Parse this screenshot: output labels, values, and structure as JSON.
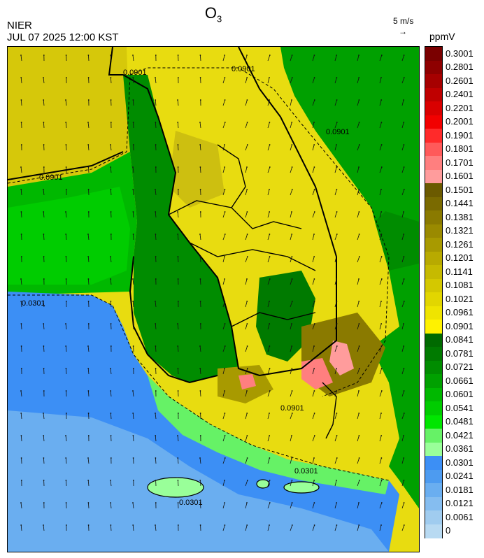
{
  "header": {
    "title_main": "O",
    "title_sub": "3",
    "agency": "NIER",
    "timestamp": "JUL 07 2025 12:00 KST",
    "wind_reference": "5 m/s",
    "unit": "ppmV"
  },
  "legend": [
    {
      "label": "0.3001",
      "color": "#7a0000"
    },
    {
      "label": "0.2801",
      "color": "#8e0000"
    },
    {
      "label": "0.2601",
      "color": "#a60000"
    },
    {
      "label": "0.2401",
      "color": "#bf0000"
    },
    {
      "label": "0.2201",
      "color": "#d90000"
    },
    {
      "label": "0.2001",
      "color": "#f20000"
    },
    {
      "label": "0.1901",
      "color": "#ff2a2a"
    },
    {
      "label": "0.1801",
      "color": "#ff5a5a"
    },
    {
      "label": "0.1701",
      "color": "#ff7f7f"
    },
    {
      "label": "0.1601",
      "color": "#ff9c9c"
    },
    {
      "label": "0.1501",
      "color": "#6b5a00"
    },
    {
      "label": "0.1441",
      "color": "#7a6a00"
    },
    {
      "label": "0.1381",
      "color": "#8a7a00"
    },
    {
      "label": "0.1321",
      "color": "#9a8a00"
    },
    {
      "label": "0.1261",
      "color": "#a89a00"
    },
    {
      "label": "0.1201",
      "color": "#b8aa00"
    },
    {
      "label": "0.1141",
      "color": "#c6ba00"
    },
    {
      "label": "0.1081",
      "color": "#d4c800"
    },
    {
      "label": "0.1021",
      "color": "#e2d600"
    },
    {
      "label": "0.0961",
      "color": "#efe400"
    },
    {
      "label": "0.0901",
      "color": "#fff200"
    },
    {
      "label": "0.0841",
      "color": "#006a00"
    },
    {
      "label": "0.0781",
      "color": "#007a00"
    },
    {
      "label": "0.0721",
      "color": "#008c00"
    },
    {
      "label": "0.0661",
      "color": "#00a000"
    },
    {
      "label": "0.0601",
      "color": "#00b800"
    },
    {
      "label": "0.0541",
      "color": "#00cc00"
    },
    {
      "label": "0.0481",
      "color": "#00e600"
    },
    {
      "label": "0.0421",
      "color": "#66f266"
    },
    {
      "label": "0.0361",
      "color": "#99ff99"
    },
    {
      "label": "0.0301",
      "color": "#3c8ff5"
    },
    {
      "label": "0.0241",
      "color": "#4d9bf0"
    },
    {
      "label": "0.0181",
      "color": "#6aaef0"
    },
    {
      "label": "0.0121",
      "color": "#85bdf0"
    },
    {
      "label": "0.0061",
      "color": "#a0ccef"
    },
    {
      "label": "0",
      "color": "#b8daf2"
    }
  ],
  "contour_labels": [
    "0.0901",
    "0.0901",
    "0.0901",
    "0.0901",
    "0.0901",
    "0.0301",
    "0.0301",
    "0.0301"
  ]
}
